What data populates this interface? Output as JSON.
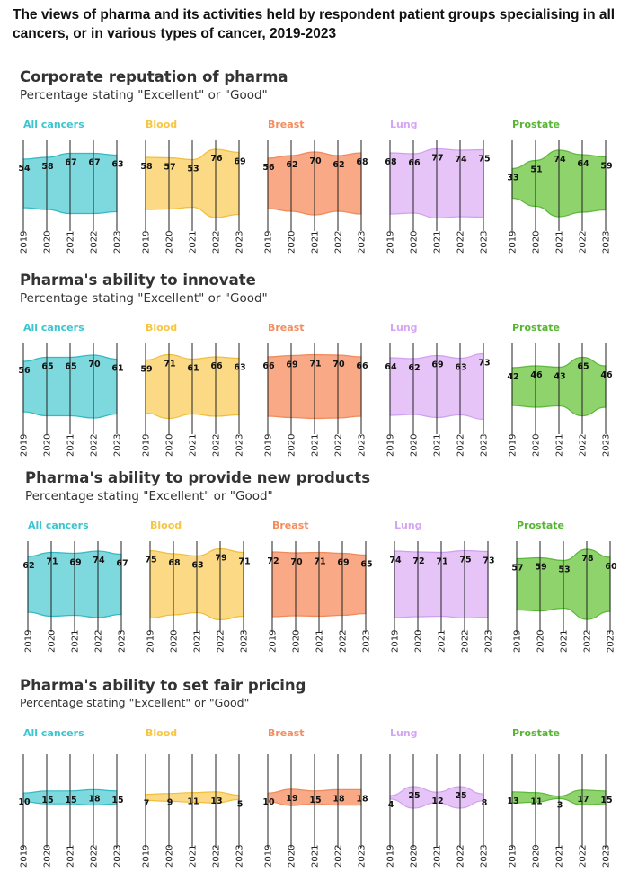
{
  "title": "The views of pharma and its activities held by respondent patient groups specialising in all cancers, or in various types of cancer, 2019-2023",
  "colors": {
    "All cancers": {
      "label": "#3cc5cf",
      "fill": "#7dd9de",
      "stroke": "#33b9c2"
    },
    "Blood": {
      "label": "#f6c543",
      "fill": "#fbd985",
      "stroke": "#f0bf3a"
    },
    "Breast": {
      "label": "#f48c5e",
      "fill": "#f9a985",
      "stroke": "#ef8a5a"
    },
    "Lung": {
      "label": "#d4a6f2",
      "fill": "#e7c4f8",
      "stroke": "#cfa0ef"
    },
    "Prostate": {
      "label": "#57b534",
      "fill": "#8fd36c",
      "stroke": "#5cb83a"
    }
  },
  "chart_data": [
    {
      "type": "area",
      "title": "Corporate reputation of pharma",
      "subtitle": "Percentage stating \"Excellent\" or \"Good\"",
      "x": [
        "2019",
        "2020",
        "2021",
        "2022",
        "2023"
      ],
      "series": [
        {
          "name": "All cancers",
          "values": [
            54,
            58,
            67,
            67,
            63
          ]
        },
        {
          "name": "Blood",
          "values": [
            58,
            57,
            53,
            76,
            69
          ]
        },
        {
          "name": "Breast",
          "values": [
            56,
            62,
            70,
            62,
            68
          ]
        },
        {
          "name": "Lung",
          "values": [
            68,
            66,
            77,
            74,
            75
          ]
        },
        {
          "name": "Prostate",
          "values": [
            33,
            51,
            74,
            64,
            59
          ]
        }
      ]
    },
    {
      "type": "area",
      "title": "Pharma's ability to innovate",
      "subtitle": "Percentage stating \"Excellent\" or \"Good\"",
      "x": [
        "2019",
        "2020",
        "2021",
        "2022",
        "2023"
      ],
      "series": [
        {
          "name": "All cancers",
          "values": [
            56,
            65,
            65,
            70,
            61
          ]
        },
        {
          "name": "Blood",
          "values": [
            59,
            71,
            61,
            66,
            63
          ]
        },
        {
          "name": "Breast",
          "values": [
            66,
            69,
            71,
            70,
            66
          ]
        },
        {
          "name": "Lung",
          "values": [
            64,
            62,
            69,
            63,
            73
          ]
        },
        {
          "name": "Prostate",
          "values": [
            42,
            46,
            43,
            65,
            46
          ]
        }
      ]
    },
    {
      "type": "area",
      "title": "Pharma's ability to provide new products",
      "subtitle": "Percentage stating \"Excellent\" or \"Good\"",
      "x": [
        "2019",
        "2020",
        "2021",
        "2022",
        "2023"
      ],
      "series": [
        {
          "name": "All cancers",
          "values": [
            62,
            71,
            69,
            74,
            67
          ]
        },
        {
          "name": "Blood",
          "values": [
            75,
            68,
            63,
            79,
            71
          ]
        },
        {
          "name": "Breast",
          "values": [
            72,
            70,
            71,
            69,
            65
          ]
        },
        {
          "name": "Lung",
          "values": [
            74,
            72,
            71,
            75,
            73
          ]
        },
        {
          "name": "Prostate",
          "values": [
            57,
            59,
            53,
            78,
            60
          ]
        }
      ]
    },
    {
      "type": "area",
      "title": "Pharma's ability to set fair pricing",
      "subtitle": "Percentage stating \"Excellent\" or \"Good\"",
      "x": [
        "2019",
        "2020",
        "2021",
        "2022",
        "2023"
      ],
      "series": [
        {
          "name": "All cancers",
          "values": [
            10,
            15,
            15,
            18,
            15
          ]
        },
        {
          "name": "Blood",
          "values": [
            7,
            9,
            11,
            13,
            5
          ]
        },
        {
          "name": "Breast",
          "values": [
            10,
            19,
            15,
            18,
            18
          ]
        },
        {
          "name": "Lung",
          "values": [
            4,
            25,
            12,
            25,
            8
          ]
        },
        {
          "name": "Prostate",
          "values": [
            13,
            11,
            3,
            17,
            15
          ]
        }
      ]
    }
  ]
}
